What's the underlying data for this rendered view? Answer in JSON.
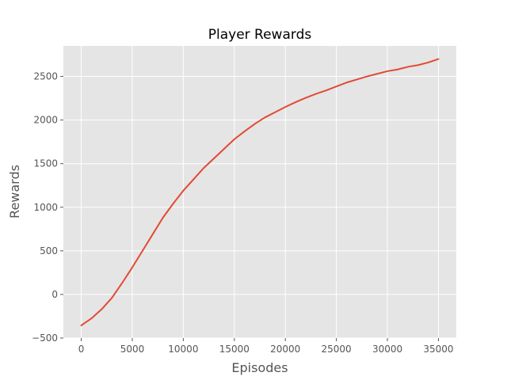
{
  "chart_data": {
    "type": "line",
    "title": "Player Rewards",
    "xlabel": "Episodes",
    "ylabel": "Rewards",
    "xlim": [
      -1750,
      36750
    ],
    "ylim": [
      -500,
      2850
    ],
    "grid": true,
    "x_ticks": [
      0,
      5000,
      10000,
      15000,
      20000,
      25000,
      30000,
      35000
    ],
    "y_ticks": [
      -500,
      0,
      500,
      1000,
      1500,
      2000,
      2500
    ],
    "series": [
      {
        "color": "#E24A33",
        "x": [
          0,
          1000,
          2000,
          3000,
          4000,
          5000,
          6000,
          7000,
          8000,
          9000,
          10000,
          11000,
          12000,
          13000,
          14000,
          15000,
          16000,
          17000,
          18000,
          19000,
          20000,
          21000,
          22000,
          23000,
          24000,
          25000,
          26000,
          27000,
          28000,
          29000,
          30000,
          31000,
          32000,
          33000,
          34000,
          35000
        ],
        "y": [
          -355,
          -275,
          -170,
          -40,
          130,
          310,
          500,
          690,
          880,
          1040,
          1190,
          1320,
          1450,
          1560,
          1670,
          1780,
          1870,
          1955,
          2030,
          2090,
          2150,
          2205,
          2255,
          2300,
          2340,
          2385,
          2430,
          2465,
          2500,
          2530,
          2560,
          2580,
          2610,
          2630,
          2660,
          2700
        ]
      }
    ]
  }
}
